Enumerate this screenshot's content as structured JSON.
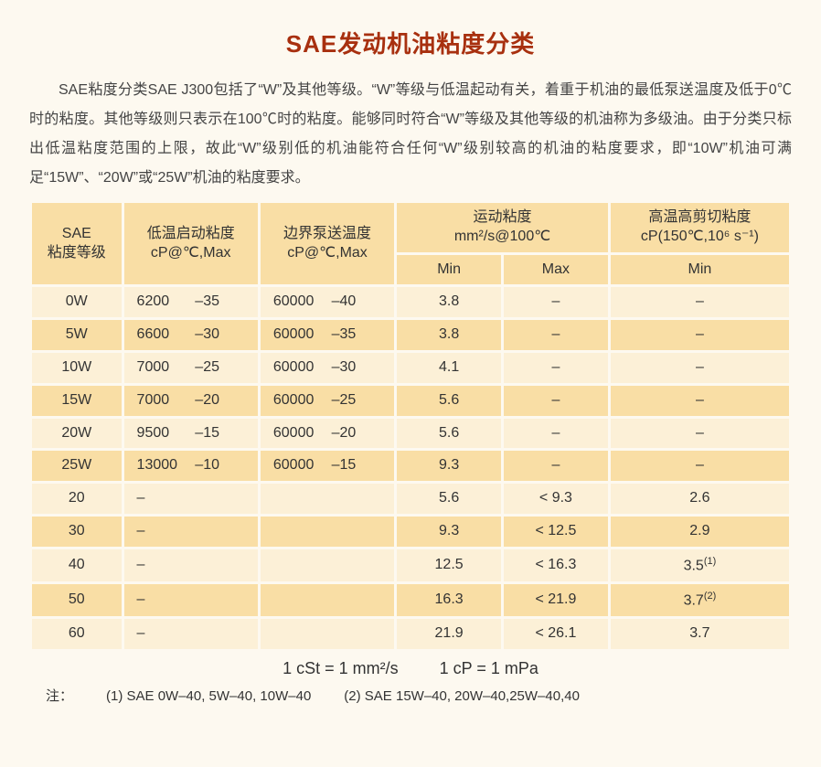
{
  "colors": {
    "page_bg": "#fdf9f0",
    "title": "#a8300f",
    "header_bg": "#f9dea5",
    "row_odd_bg": "#fcf0d7",
    "row_even_bg": "#f9dea5",
    "text": "#333333"
  },
  "title": "SAE发动机油粘度分类",
  "intro": "SAE粘度分类SAE J300包括了“W”及其他等级。“W”等级与低温起动有关，着重于机油的最低泵送温度及低于0℃时的粘度。其他等级则只表示在100℃时的粘度。能够同时符合“W”等级及其他等级的机油称为多级油。由于分类只标出低温粘度范围的上限，故此“W”级别低的机油能符合任何“W”级别较高的机油的粘度要求，即“10W”机油可满足“15W”、“20W”或“25W”机油的粘度要求。",
  "headers": {
    "c1a": "SAE",
    "c1b": "粘度等级",
    "c2a": "低温启动粘度",
    "c2b": "cP@℃,Max",
    "c3a": "边界泵送温度",
    "c3b": "cP@℃,Max",
    "c4a": "运动粘度",
    "c4b": "mm²/s@100℃",
    "c4min": "Min",
    "c4max": "Max",
    "c5a": "高温高剪切粘度",
    "c5b": "cP(150℃,10⁶ s⁻¹)",
    "c5min": "Min"
  },
  "rows": [
    {
      "grade": "0W",
      "crank_cp": "6200",
      "crank_t": "–35",
      "pump_cp": "60000",
      "pump_t": "–40",
      "kv_min": "3.8",
      "kv_max": "–",
      "hths": "–",
      "hths_sup": ""
    },
    {
      "grade": "5W",
      "crank_cp": "6600",
      "crank_t": "–30",
      "pump_cp": "60000",
      "pump_t": "–35",
      "kv_min": "3.8",
      "kv_max": "–",
      "hths": "–",
      "hths_sup": ""
    },
    {
      "grade": "10W",
      "crank_cp": "7000",
      "crank_t": "–25",
      "pump_cp": "60000",
      "pump_t": "–30",
      "kv_min": "4.1",
      "kv_max": "–",
      "hths": "–",
      "hths_sup": ""
    },
    {
      "grade": "15W",
      "crank_cp": "7000",
      "crank_t": "–20",
      "pump_cp": "60000",
      "pump_t": "–25",
      "kv_min": "5.6",
      "kv_max": "–",
      "hths": "–",
      "hths_sup": ""
    },
    {
      "grade": "20W",
      "crank_cp": "9500",
      "crank_t": "–15",
      "pump_cp": "60000",
      "pump_t": "–20",
      "kv_min": "5.6",
      "kv_max": "–",
      "hths": "–",
      "hths_sup": ""
    },
    {
      "grade": "25W",
      "crank_cp": "13000",
      "crank_t": "–10",
      "pump_cp": "60000",
      "pump_t": "–15",
      "kv_min": "9.3",
      "kv_max": "–",
      "hths": "–",
      "hths_sup": ""
    },
    {
      "grade": "20",
      "crank_cp": "–",
      "crank_t": "",
      "pump_cp": "",
      "pump_t": "",
      "kv_min": "5.6",
      "kv_max": "< 9.3",
      "hths": "2.6",
      "hths_sup": ""
    },
    {
      "grade": "30",
      "crank_cp": "–",
      "crank_t": "",
      "pump_cp": "",
      "pump_t": "",
      "kv_min": "9.3",
      "kv_max": "< 12.5",
      "hths": "2.9",
      "hths_sup": ""
    },
    {
      "grade": "40",
      "crank_cp": "–",
      "crank_t": "",
      "pump_cp": "",
      "pump_t": "",
      "kv_min": "12.5",
      "kv_max": "< 16.3",
      "hths": "3.5",
      "hths_sup": "(1)"
    },
    {
      "grade": "50",
      "crank_cp": "–",
      "crank_t": "",
      "pump_cp": "",
      "pump_t": "",
      "kv_min": "16.3",
      "kv_max": "< 21.9",
      "hths": "3.7",
      "hths_sup": "(2)"
    },
    {
      "grade": "60",
      "crank_cp": "–",
      "crank_t": "",
      "pump_cp": "",
      "pump_t": "",
      "kv_min": "21.9",
      "kv_max": "< 26.1",
      "hths": "3.7",
      "hths_sup": ""
    }
  ],
  "equiv": {
    "a": "1 cSt = 1 mm²/s",
    "b": "1 cP = 1 mPa"
  },
  "notes": {
    "label": "注：",
    "n1": "(1) SAE 0W–40, 5W–40, 10W–40",
    "n2": "(2) SAE 15W–40, 20W–40,25W–40,40"
  }
}
